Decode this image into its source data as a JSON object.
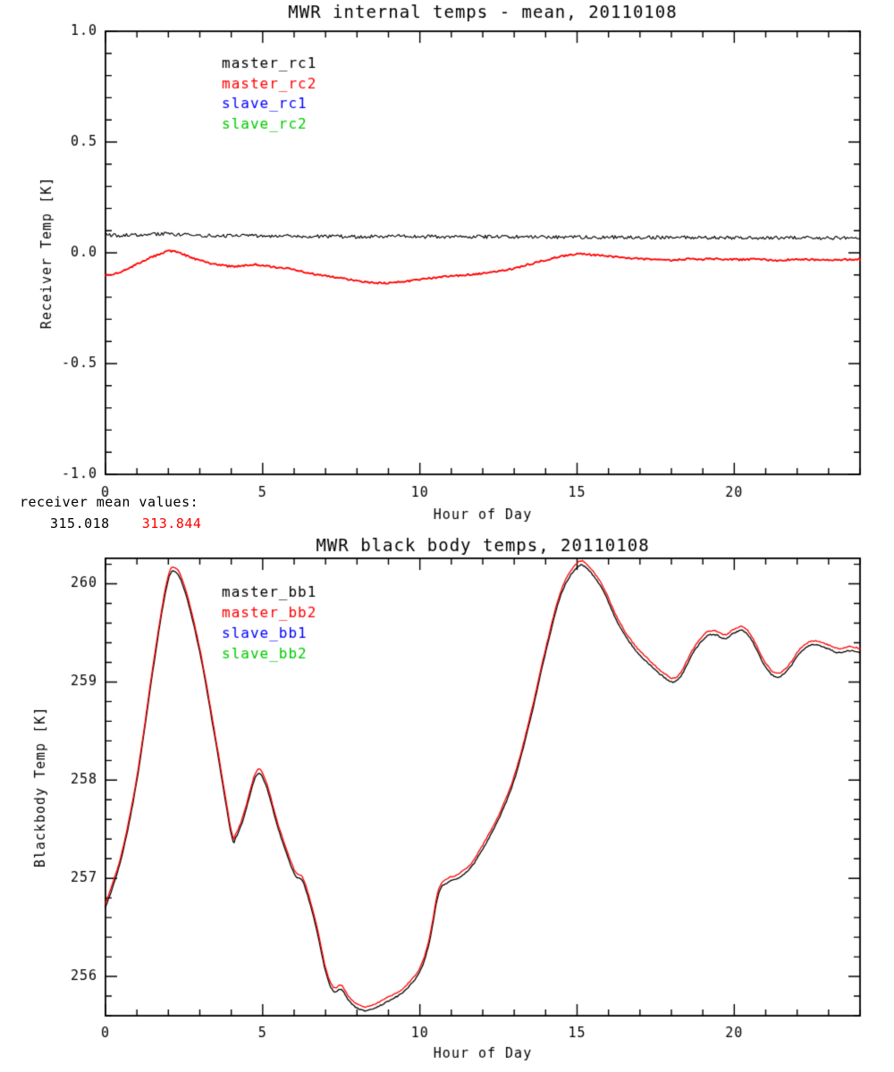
{
  "receiver_means": {
    "label": "receiver mean values:",
    "values": [
      {
        "name": "master_rc1_mean",
        "text": "315.018",
        "color": "#000000"
      },
      {
        "name": "master_rc2_mean",
        "text": "313.844",
        "color": "#ff0000"
      }
    ]
  },
  "chart_data": [
    {
      "type": "line",
      "title": "MWR internal temps - mean, 20110108",
      "xlabel": "Hour of Day",
      "ylabel": "Receiver Temp [K]",
      "xlim": [
        0,
        24
      ],
      "ylim": [
        -1.0,
        1.0
      ],
      "xticks": [
        0,
        5,
        10,
        15,
        20
      ],
      "xtick_labels": [
        "0",
        "5",
        "10",
        "15",
        "20"
      ],
      "yticks": [
        -1.0,
        -0.5,
        0.0,
        0.5,
        1.0
      ],
      "ytick_labels": [
        "-1.0",
        "-0.5",
        "0.0",
        "0.5",
        "1.0"
      ],
      "minor_per_major_x": 5,
      "minor_per_major_y": 5,
      "grid": false,
      "legend": {
        "position": "upper-left-inside",
        "entries": [
          {
            "label": "master_rc1",
            "color": "#000000"
          },
          {
            "label": "master_rc2",
            "color": "#ff0000"
          },
          {
            "label": "slave_rc1",
            "color": "#0000ff"
          },
          {
            "label": "slave_rc2",
            "color": "#00cc00"
          }
        ]
      },
      "series": [
        {
          "name": "master_rc1",
          "color": "#000000",
          "width": 1.1,
          "noise": 0.008,
          "points": [
            [
              0,
              0.08
            ],
            [
              0.5,
              0.079
            ],
            [
              1,
              0.081
            ],
            [
              1.5,
              0.084
            ],
            [
              2,
              0.085
            ],
            [
              2.5,
              0.081
            ],
            [
              3,
              0.078
            ],
            [
              3.5,
              0.077
            ],
            [
              4,
              0.076
            ],
            [
              4.5,
              0.076
            ],
            [
              5,
              0.075
            ],
            [
              5.5,
              0.075
            ],
            [
              6,
              0.075
            ],
            [
              6.5,
              0.074
            ],
            [
              7,
              0.074
            ],
            [
              7.5,
              0.073
            ],
            [
              8,
              0.073
            ],
            [
              8.5,
              0.074
            ],
            [
              9,
              0.074
            ],
            [
              9.5,
              0.074
            ],
            [
              10,
              0.073
            ],
            [
              10.5,
              0.073
            ],
            [
              11,
              0.072
            ],
            [
              11.5,
              0.072
            ],
            [
              12,
              0.072
            ],
            [
              12.5,
              0.072
            ],
            [
              13,
              0.073
            ],
            [
              13.5,
              0.072
            ],
            [
              14,
              0.071
            ],
            [
              14.5,
              0.071
            ],
            [
              15,
              0.07
            ],
            [
              15.5,
              0.07
            ],
            [
              16,
              0.07
            ],
            [
              16.5,
              0.07
            ],
            [
              17,
              0.07
            ],
            [
              17.5,
              0.07
            ],
            [
              18,
              0.069
            ],
            [
              18.5,
              0.069
            ],
            [
              19,
              0.069
            ],
            [
              19.5,
              0.069
            ],
            [
              20,
              0.068
            ],
            [
              20.5,
              0.068
            ],
            [
              21,
              0.068
            ],
            [
              21.5,
              0.068
            ],
            [
              22,
              0.067
            ],
            [
              22.5,
              0.067
            ],
            [
              23,
              0.067
            ],
            [
              23.5,
              0.067
            ],
            [
              24,
              0.067
            ]
          ]
        },
        {
          "name": "master_rc2",
          "color": "#ff0000",
          "width": 1.8,
          "noise": 0.004,
          "points": [
            [
              0,
              -0.1
            ],
            [
              0.3,
              -0.094
            ],
            [
              0.6,
              -0.078
            ],
            [
              0.9,
              -0.058
            ],
            [
              1.2,
              -0.038
            ],
            [
              1.5,
              -0.018
            ],
            [
              1.8,
              -0.002
            ],
            [
              2.05,
              0.008
            ],
            [
              2.3,
              0.002
            ],
            [
              2.6,
              -0.014
            ],
            [
              2.9,
              -0.03
            ],
            [
              3.2,
              -0.043
            ],
            [
              3.5,
              -0.052
            ],
            [
              3.8,
              -0.058
            ],
            [
              4.1,
              -0.062
            ],
            [
              4.4,
              -0.058
            ],
            [
              4.7,
              -0.054
            ],
            [
              5.0,
              -0.057
            ],
            [
              5.3,
              -0.064
            ],
            [
              5.6,
              -0.068
            ],
            [
              5.9,
              -0.073
            ],
            [
              6.2,
              -0.082
            ],
            [
              6.5,
              -0.092
            ],
            [
              6.8,
              -0.1
            ],
            [
              7.1,
              -0.107
            ],
            [
              7.5,
              -0.115
            ],
            [
              7.9,
              -0.124
            ],
            [
              8.3,
              -0.132
            ],
            [
              8.7,
              -0.137
            ],
            [
              9.0,
              -0.136
            ],
            [
              9.4,
              -0.131
            ],
            [
              9.8,
              -0.124
            ],
            [
              10.2,
              -0.117
            ],
            [
              10.6,
              -0.111
            ],
            [
              11.0,
              -0.105
            ],
            [
              11.4,
              -0.1
            ],
            [
              11.8,
              -0.096
            ],
            [
              12.2,
              -0.09
            ],
            [
              12.6,
              -0.082
            ],
            [
              13.0,
              -0.07
            ],
            [
              13.4,
              -0.055
            ],
            [
              13.8,
              -0.04
            ],
            [
              14.2,
              -0.026
            ],
            [
              14.6,
              -0.014
            ],
            [
              15.0,
              -0.006
            ],
            [
              15.4,
              -0.008
            ],
            [
              15.8,
              -0.013
            ],
            [
              16.2,
              -0.018
            ],
            [
              16.6,
              -0.023
            ],
            [
              17.0,
              -0.027
            ],
            [
              17.4,
              -0.031
            ],
            [
              17.8,
              -0.034
            ],
            [
              18.2,
              -0.032
            ],
            [
              18.6,
              -0.028
            ],
            [
              19.0,
              -0.029
            ],
            [
              19.4,
              -0.027
            ],
            [
              19.8,
              -0.029
            ],
            [
              20.2,
              -0.031
            ],
            [
              20.6,
              -0.029
            ],
            [
              21.0,
              -0.031
            ],
            [
              21.4,
              -0.034
            ],
            [
              21.8,
              -0.031
            ],
            [
              22.2,
              -0.029
            ],
            [
              22.6,
              -0.032
            ],
            [
              23.0,
              -0.034
            ],
            [
              23.4,
              -0.031
            ],
            [
              23.8,
              -0.029
            ],
            [
              24,
              -0.03
            ]
          ]
        }
      ]
    },
    {
      "type": "line",
      "title": "MWR black body temps, 20110108",
      "xlabel": "Hour of Day",
      "ylabel": "Blackbody Temp [K]",
      "xlim": [
        0,
        24
      ],
      "ylim": [
        255.6,
        260.26
      ],
      "xticks": [
        0,
        5,
        10,
        15,
        20
      ],
      "xtick_labels": [
        "0",
        "5",
        "10",
        "15",
        "20"
      ],
      "yticks": [
        256,
        257,
        258,
        259,
        260
      ],
      "ytick_labels": [
        "256",
        "257",
        "258",
        "259",
        "260"
      ],
      "minor_per_major_x": 5,
      "minor_per_major_y": 5,
      "grid": false,
      "legend": {
        "position": "upper-left-inside",
        "entries": [
          {
            "label": "master_bb1",
            "color": "#000000"
          },
          {
            "label": "master_bb2",
            "color": "#ff0000"
          },
          {
            "label": "slave_bb1",
            "color": "#0000ff"
          },
          {
            "label": "slave_bb2",
            "color": "#00cc00"
          }
        ]
      },
      "series": [
        {
          "name": "master_bb1",
          "color": "#000000",
          "width": 1.3,
          "noise": 0.006,
          "points": [
            [
              0,
              256.7
            ],
            [
              0.5,
              257.2
            ],
            [
              1.0,
              258.0
            ],
            [
              1.5,
              259.1
            ],
            [
              1.9,
              259.9
            ],
            [
              2.15,
              260.13
            ],
            [
              2.5,
              259.95
            ],
            [
              3.0,
              259.3
            ],
            [
              3.5,
              258.4
            ],
            [
              4.0,
              257.45
            ],
            [
              4.15,
              257.42
            ],
            [
              4.4,
              257.62
            ],
            [
              4.8,
              258.05
            ],
            [
              5.1,
              257.95
            ],
            [
              5.5,
              257.5
            ],
            [
              6.0,
              257.05
            ],
            [
              6.3,
              256.95
            ],
            [
              6.7,
              256.5
            ],
            [
              7.0,
              256.05
            ],
            [
              7.25,
              255.85
            ],
            [
              7.5,
              255.87
            ],
            [
              7.75,
              255.75
            ],
            [
              8.0,
              255.68
            ],
            [
              8.3,
              255.65
            ],
            [
              8.7,
              255.7
            ],
            [
              9.0,
              255.75
            ],
            [
              9.5,
              255.85
            ],
            [
              10.0,
              256.05
            ],
            [
              10.3,
              256.35
            ],
            [
              10.6,
              256.85
            ],
            [
              10.9,
              256.96
            ],
            [
              11.2,
              257.0
            ],
            [
              11.6,
              257.1
            ],
            [
              12.0,
              257.3
            ],
            [
              12.5,
              257.6
            ],
            [
              13.0,
              258.0
            ],
            [
              13.5,
              258.6
            ],
            [
              14.0,
              259.3
            ],
            [
              14.5,
              259.9
            ],
            [
              15.0,
              260.17
            ],
            [
              15.3,
              260.16
            ],
            [
              15.8,
              259.95
            ],
            [
              16.3,
              259.6
            ],
            [
              16.8,
              259.35
            ],
            [
              17.3,
              259.18
            ],
            [
              17.8,
              259.04
            ],
            [
              18.05,
              259.0
            ],
            [
              18.3,
              259.06
            ],
            [
              18.7,
              259.3
            ],
            [
              19.1,
              259.46
            ],
            [
              19.4,
              259.48
            ],
            [
              19.7,
              259.44
            ],
            [
              20.0,
              259.5
            ],
            [
              20.3,
              259.52
            ],
            [
              20.6,
              259.4
            ],
            [
              21.0,
              259.15
            ],
            [
              21.35,
              259.05
            ],
            [
              21.7,
              259.12
            ],
            [
              22.1,
              259.3
            ],
            [
              22.5,
              259.38
            ],
            [
              22.9,
              259.35
            ],
            [
              23.3,
              259.3
            ],
            [
              23.7,
              259.32
            ],
            [
              24,
              259.3
            ]
          ]
        },
        {
          "name": "master_bb2",
          "color": "#ff0000",
          "width": 1.3,
          "noise": 0.006,
          "base_series": "master_bb1",
          "offset": 0.04
        }
      ]
    }
  ]
}
